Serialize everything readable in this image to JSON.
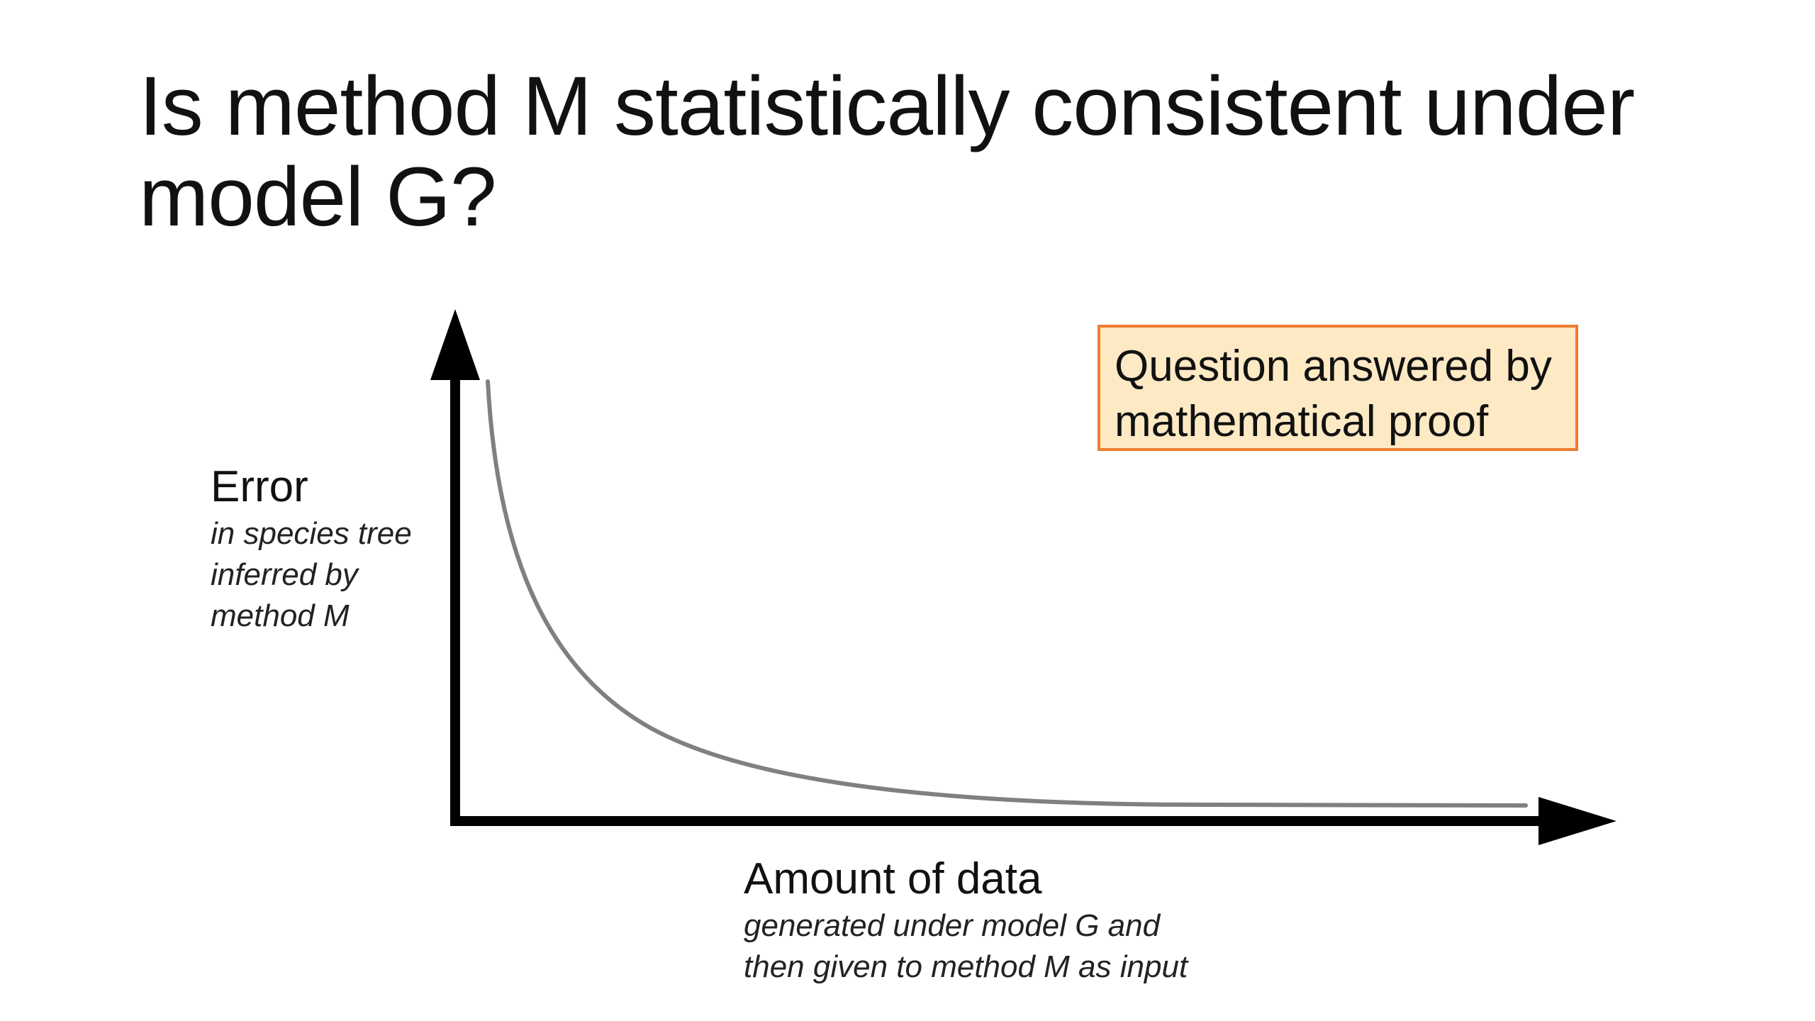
{
  "slide": {
    "title_line1": "Is method M statistically consistent under",
    "title_line2": "model G?"
  },
  "diagram": {
    "y_axis": {
      "label": "Error",
      "sublabel_lines": [
        "in species tree",
        "inferred by",
        "method M"
      ]
    },
    "x_axis": {
      "label": "Amount of data",
      "sublabel_lines": [
        "generated under model G and",
        "then given to method M as input"
      ]
    },
    "callout": {
      "lines": [
        "Question answered by",
        "mathematical proof"
      ],
      "fill_color": "#fde9c4",
      "border_color": "#ee7b30"
    },
    "curve": {
      "shape": "decreasing toward zero",
      "color": "#808080"
    },
    "axis_color": "#000000"
  }
}
